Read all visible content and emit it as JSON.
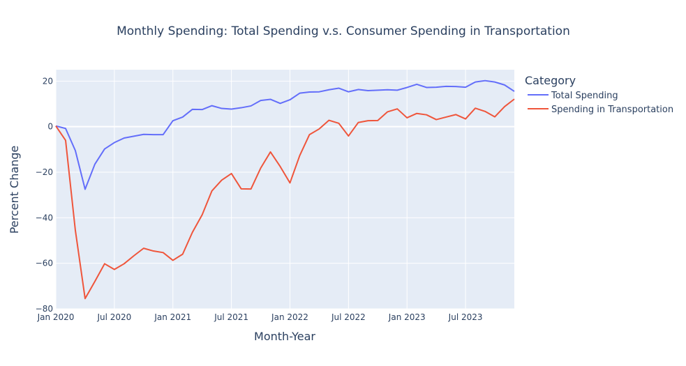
{
  "chart_data": {
    "type": "line",
    "title": "Monthly Spending: Total Spending v.s. Consumer Spending in Transportation",
    "xlabel": "Month-Year",
    "ylabel": "Percent Change",
    "xlim": [
      "2020-01",
      "2023-12"
    ],
    "ylim": [
      -80,
      25
    ],
    "x_tick_labels": [
      "Jan 2020",
      "Jul 2020",
      "Jan 2021",
      "Jul 2021",
      "Jan 2022",
      "Jul 2022",
      "Jan 2023",
      "Jul 2023"
    ],
    "y_tick_labels": [
      "20",
      "0",
      "−20",
      "−40",
      "−60",
      "−80"
    ],
    "y_tick_values": [
      20,
      0,
      -20,
      -40,
      -60,
      -80
    ],
    "grid": true,
    "legend_position": "right",
    "legend_title": "Category",
    "x": [
      "2020-01",
      "2020-02",
      "2020-03",
      "2020-04",
      "2020-05",
      "2020-06",
      "2020-07",
      "2020-08",
      "2020-09",
      "2020-10",
      "2020-11",
      "2020-12",
      "2021-01",
      "2021-02",
      "2021-03",
      "2021-04",
      "2021-05",
      "2021-06",
      "2021-07",
      "2021-08",
      "2021-09",
      "2021-10",
      "2021-11",
      "2021-12",
      "2022-01",
      "2022-02",
      "2022-03",
      "2022-04",
      "2022-05",
      "2022-06",
      "2022-07",
      "2022-08",
      "2022-09",
      "2022-10",
      "2022-11",
      "2022-12",
      "2023-01",
      "2023-02",
      "2023-03",
      "2023-04",
      "2023-05",
      "2023-06",
      "2023-07",
      "2023-08",
      "2023-09",
      "2023-10",
      "2023-11",
      "2023-12"
    ],
    "series": [
      {
        "name": "Total Spending",
        "color": "#636efa",
        "values": [
          0.3,
          -0.8,
          -10.5,
          -27.5,
          -16.5,
          -9.8,
          -7.0,
          -5.0,
          -4.2,
          -3.4,
          -3.5,
          -3.5,
          2.6,
          4.2,
          7.6,
          7.5,
          9.2,
          8.0,
          7.7,
          8.3,
          9.1,
          11.5,
          12.0,
          10.2,
          11.8,
          14.7,
          15.2,
          15.3,
          16.2,
          16.9,
          15.3,
          16.3,
          15.8,
          16.0,
          16.2,
          16.0,
          17.2,
          18.6,
          17.2,
          17.3,
          17.7,
          17.6,
          17.3,
          19.6,
          20.2,
          19.6,
          18.3,
          15.5
        ]
      },
      {
        "name": "Spending in Transportation",
        "color": "#ef553b",
        "values": [
          0.3,
          -6.0,
          -45.5,
          -75.5,
          -68.0,
          -60.2,
          -62.7,
          -60.2,
          -56.7,
          -53.4,
          -54.6,
          -55.3,
          -58.7,
          -56.0,
          -46.4,
          -38.7,
          -28.2,
          -23.5,
          -20.6,
          -27.3,
          -27.4,
          -18.2,
          -11.1,
          -17.5,
          -24.7,
          -12.7,
          -3.5,
          -1.0,
          2.8,
          1.5,
          -4.1,
          1.8,
          2.6,
          2.7,
          6.5,
          7.8,
          3.9,
          5.8,
          5.2,
          3.1,
          4.2,
          5.3,
          3.4,
          8.1,
          6.7,
          4.3,
          8.8,
          12.1
        ]
      }
    ]
  }
}
